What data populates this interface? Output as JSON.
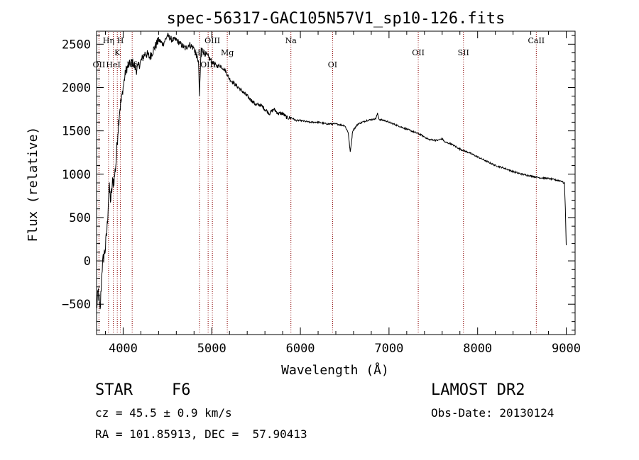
{
  "chart_data": {
    "type": "line",
    "title": "spec-56317-GAC105N57V1_sp10-126.fits",
    "xlabel": "Wavelength (Å)",
    "ylabel": "Flux (relative)",
    "xlim": [
      3700,
      9100
    ],
    "ylim": [
      -850,
      2650
    ],
    "x_ticks": [
      4000,
      5000,
      6000,
      7000,
      8000,
      9000
    ],
    "y_ticks": [
      -500,
      0,
      500,
      1000,
      1500,
      2000,
      2500
    ],
    "grid": false,
    "line_color": "#000000",
    "marker_color": "#8b0000",
    "series": [
      {
        "x": [
          3700,
          3720,
          3740,
          3760,
          3780,
          3800,
          3820,
          3840,
          3860,
          3880,
          3900,
          3920,
          3940,
          3960,
          3980,
          4000,
          4030,
          4060,
          4100,
          4150,
          4200,
          4250,
          4300,
          4350,
          4400,
          4450,
          4500,
          4550,
          4600,
          4650,
          4700,
          4750,
          4800,
          4850,
          4861,
          4880,
          4920,
          4960,
          5000,
          5050,
          5100,
          5150,
          5200,
          5250,
          5300,
          5350,
          5400,
          5450,
          5500,
          5550,
          5600,
          5650,
          5700,
          5750,
          5800,
          5850,
          5900,
          5950,
          6000,
          6100,
          6200,
          6300,
          6400,
          6500,
          6540,
          6563,
          6590,
          6650,
          6750,
          6850,
          6870,
          6890,
          6950,
          7050,
          7150,
          7250,
          7350,
          7450,
          7550,
          7600,
          7630,
          7700,
          7800,
          7900,
          8000,
          8100,
          8200,
          8300,
          8400,
          8500,
          8600,
          8700,
          8800,
          8900,
          8950,
          8980,
          8990,
          9000
        ],
        "y": [
          -550,
          -350,
          -600,
          -100,
          50,
          150,
          400,
          850,
          700,
          900,
          950,
          1150,
          1500,
          1750,
          1850,
          2000,
          2200,
          2250,
          2300,
          2200,
          2300,
          2400,
          2350,
          2450,
          2550,
          2500,
          2600,
          2550,
          2550,
          2500,
          2450,
          2500,
          2450,
          2300,
          1900,
          2450,
          2400,
          2350,
          2300,
          2250,
          2250,
          2200,
          2100,
          2050,
          2000,
          1950,
          1900,
          1850,
          1800,
          1800,
          1750,
          1700,
          1750,
          1700,
          1700,
          1650,
          1650,
          1620,
          1620,
          1600,
          1600,
          1580,
          1580,
          1560,
          1480,
          1250,
          1500,
          1580,
          1620,
          1640,
          1700,
          1630,
          1620,
          1580,
          1540,
          1500,
          1460,
          1400,
          1390,
          1410,
          1370,
          1350,
          1290,
          1250,
          1200,
          1150,
          1100,
          1070,
          1030,
          1000,
          980,
          960,
          950,
          930,
          920,
          890,
          600,
          180
        ]
      }
    ],
    "lines": [
      {
        "label": "OII",
        "x": 3727,
        "row": 3
      },
      {
        "label": "Hη",
        "x": 3835,
        "row": 1
      },
      {
        "label": "HeI",
        "x": 3889,
        "row": 3
      },
      {
        "label": "K",
        "x": 3934,
        "row": 2
      },
      {
        "label": "H",
        "x": 3969,
        "row": 1
      },
      {
        "label": "Hδ",
        "x": 4102,
        "row": 3
      },
      {
        "label": "Hβ",
        "x": 4861,
        "row": 2
      },
      {
        "label": "OIII",
        "x": 4959,
        "row": 3
      },
      {
        "label": "OIII",
        "x": 5007,
        "row": 1
      },
      {
        "label": "Mg",
        "x": 5175,
        "row": 2
      },
      {
        "label": "Na",
        "x": 5893,
        "row": 1
      },
      {
        "label": "OI",
        "x": 6363,
        "row": 3
      },
      {
        "label": "OII",
        "x": 7330,
        "row": 2
      },
      {
        "label": "SII",
        "x": 7840,
        "row": 2
      },
      {
        "label": "CaII",
        "x": 8662,
        "row": 1
      }
    ]
  },
  "info": {
    "object_class": "STAR",
    "subclass": "F6",
    "survey": "LAMOST DR2",
    "redshift": "cz = 45.5 ± 0.9 km/s",
    "obs_date": "Obs-Date: 20130124",
    "coords": "RA = 101.85913, DEC =  57.90413"
  }
}
